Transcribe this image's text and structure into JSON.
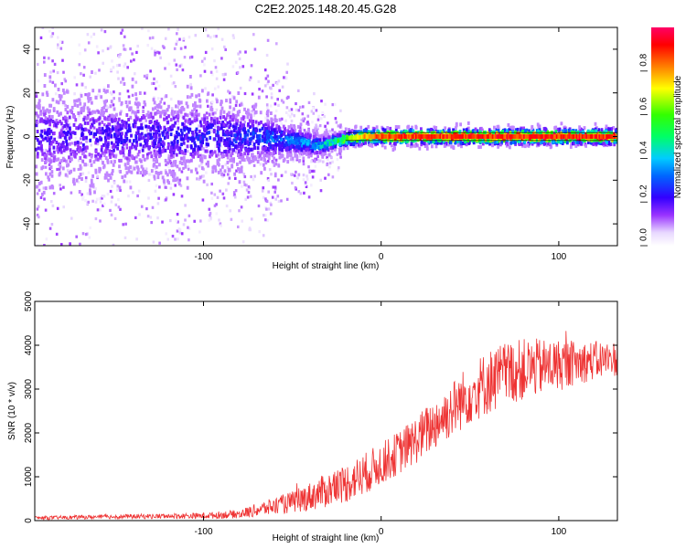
{
  "title": "C2E2.2025.148.20.45.G28",
  "chart_data": [
    {
      "type": "heatmap",
      "xlabel": "Height of straight line (km)",
      "ylabel": "Frequency (Hz)",
      "xlim": [
        -195,
        133
      ],
      "ylim": [
        -50,
        50
      ],
      "x_ticks": [
        -100,
        0,
        100
      ],
      "y_ticks": [
        -40,
        -20,
        0,
        20,
        40
      ],
      "colorbar": {
        "label": "Normalized spectral amplitude",
        "range": [
          0,
          1
        ],
        "ticks": [
          0.0,
          0.2,
          0.4,
          0.6,
          0.8
        ],
        "colormap": "white-purple-blue-cyan-green-yellow-red-pink"
      },
      "ridge": [
        {
          "x": -195,
          "freq": 0,
          "amp": 0.18,
          "spread_hz": 45
        },
        {
          "x": -150,
          "freq": 0,
          "amp": 0.2,
          "spread_hz": 42
        },
        {
          "x": -100,
          "freq": 0,
          "amp": 0.22,
          "spread_hz": 38
        },
        {
          "x": -75,
          "freq": 0,
          "amp": 0.25,
          "spread_hz": 30
        },
        {
          "x": -50,
          "freq": -2,
          "amp": 0.32,
          "spread_hz": 15
        },
        {
          "x": -35,
          "freq": -4,
          "amp": 0.4,
          "spread_hz": 10
        },
        {
          "x": -20,
          "freq": -1,
          "amp": 0.6,
          "spread_hz": 5
        },
        {
          "x": -10,
          "freq": 0,
          "amp": 0.8,
          "spread_hz": 3
        },
        {
          "x": 0,
          "freq": 0,
          "amp": 0.88,
          "spread_hz": 2
        },
        {
          "x": 50,
          "freq": 0,
          "amp": 0.92,
          "spread_hz": 2
        },
        {
          "x": 100,
          "freq": 0,
          "amp": 0.92,
          "spread_hz": 2
        },
        {
          "x": 133,
          "freq": 0,
          "amp": 0.9,
          "spread_hz": 2
        }
      ]
    },
    {
      "type": "line",
      "xlabel": "Height of straight line (km)",
      "ylabel": "SNR (10 * v/v)",
      "xlim": [
        -195,
        133
      ],
      "ylim": [
        0,
        5000
      ],
      "x_ticks": [
        -100,
        0,
        100
      ],
      "y_ticks": [
        0,
        1000,
        2000,
        3000,
        4000,
        5000
      ],
      "series": [
        {
          "color": "#ee3333",
          "trend_x": [
            -195,
            -150,
            -100,
            -80,
            -70,
            -60,
            -50,
            -40,
            -30,
            -20,
            -10,
            0,
            10,
            20,
            30,
            40,
            50,
            60,
            70,
            80,
            90,
            100,
            110,
            120,
            133
          ],
          "trend_y": [
            60,
            90,
            110,
            150,
            240,
            330,
            420,
            550,
            700,
            850,
            1050,
            1300,
            1550,
            1850,
            2200,
            2550,
            2900,
            3150,
            3350,
            3450,
            3500,
            3550,
            3600,
            3650,
            3700
          ],
          "noise_y": [
            40,
            50,
            70,
            100,
            150,
            200,
            250,
            330,
            400,
            450,
            480,
            480,
            500,
            550,
            600,
            650,
            700,
            750,
            750,
            700,
            650,
            600,
            500,
            450,
            400
          ]
        }
      ]
    }
  ]
}
